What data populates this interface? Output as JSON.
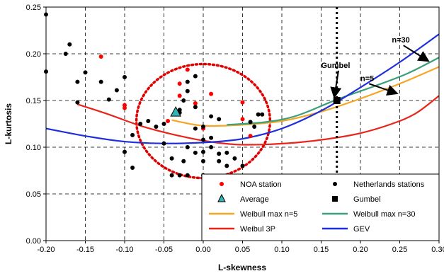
{
  "chart_data": {
    "type": "scatter",
    "title": "",
    "xlabel": "L-skewness",
    "ylabel": "L-kurtosis",
    "xlim": [
      -0.2,
      0.3
    ],
    "ylim": [
      0.0,
      0.25
    ],
    "xticks": [
      -0.2,
      -0.15,
      -0.1,
      -0.05,
      0.0,
      0.05,
      0.1,
      0.15,
      0.2,
      0.25,
      0.3
    ],
    "xtick_labels": [
      "-0.20",
      "-0.15",
      "-0.10",
      "-0.05",
      "0.00",
      "0.05",
      "0.10",
      "0.15",
      "0.20",
      "0.25",
      "0.30"
    ],
    "yticks": [
      0.0,
      0.05,
      0.1,
      0.15,
      0.2,
      0.25
    ],
    "ytick_labels": [
      "0.00",
      "0.05",
      "0.10",
      "0.15",
      "0.20",
      "0.25"
    ],
    "grid": true,
    "legend_position": "bottom-right",
    "vertical_line": {
      "x": 0.17,
      "style": "dotted",
      "color": "#000000"
    },
    "series": [
      {
        "name": "NOA station",
        "kind": "points",
        "color": "#ff0000",
        "points": [
          [
            -0.13,
            0.197
          ],
          [
            -0.1,
            0.145
          ],
          [
            -0.1,
            0.142
          ],
          [
            -0.03,
            0.168
          ],
          [
            -0.03,
            0.155
          ],
          [
            -0.02,
            0.183
          ],
          [
            -0.01,
            0.147
          ],
          [
            0.01,
            0.157
          ],
          [
            0.0,
            0.12
          ],
          [
            0.05,
            0.148
          ],
          [
            0.05,
            0.13
          ],
          [
            0.06,
            0.112
          ],
          [
            -0.045,
            0.128
          ]
        ]
      },
      {
        "name": "Netherlands stations",
        "kind": "points",
        "color": "#000000",
        "points": [
          [
            -0.2,
            0.242
          ],
          [
            -0.2,
            0.181
          ],
          [
            -0.175,
            0.2
          ],
          [
            -0.17,
            0.21
          ],
          [
            -0.16,
            0.148
          ],
          [
            -0.16,
            0.17
          ],
          [
            -0.15,
            0.18
          ],
          [
            -0.13,
            0.17
          ],
          [
            -0.12,
            0.151
          ],
          [
            -0.11,
            0.161
          ],
          [
            -0.1,
            0.175
          ],
          [
            -0.1,
            0.095
          ],
          [
            -0.09,
            0.113
          ],
          [
            -0.08,
            0.125
          ],
          [
            -0.07,
            0.128
          ],
          [
            -0.06,
            0.122
          ],
          [
            -0.05,
            0.125
          ],
          [
            -0.05,
            0.104
          ],
          [
            -0.04,
            0.088
          ],
          [
            -0.04,
            0.07
          ],
          [
            -0.03,
            0.14
          ],
          [
            -0.03,
            0.137
          ],
          [
            -0.025,
            0.15
          ],
          [
            -0.02,
            0.16
          ],
          [
            -0.02,
            0.17
          ],
          [
            -0.02,
            0.1
          ],
          [
            -0.025,
            0.085
          ],
          [
            -0.02,
            0.07
          ],
          [
            -0.01,
            0.176
          ],
          [
            -0.01,
            0.143
          ],
          [
            -0.01,
            0.12
          ],
          [
            -0.01,
            0.094
          ],
          [
            0.0,
            0.122
          ],
          [
            0.0,
            0.108
          ],
          [
            0.0,
            0.095
          ],
          [
            0.0,
            0.085
          ],
          [
            0.01,
            0.133
          ],
          [
            0.01,
            0.11
          ],
          [
            0.01,
            0.1
          ],
          [
            0.02,
            0.13
          ],
          [
            0.02,
            0.093
          ],
          [
            0.02,
            0.085
          ],
          [
            0.03,
            0.094
          ],
          [
            0.03,
            0.08
          ],
          [
            0.04,
            0.088
          ],
          [
            0.05,
            0.08
          ],
          [
            0.06,
            0.127
          ],
          [
            0.065,
            0.122
          ],
          [
            0.07,
            0.135
          ],
          [
            0.075,
            0.135
          ],
          [
            -0.03,
            0.07
          ],
          [
            0.0,
            0.07
          ],
          [
            -0.09,
            0.078
          ]
        ]
      },
      {
        "name": "Average",
        "kind": "marker",
        "color": "#33b5b5",
        "shape": "triangle",
        "points": [
          [
            -0.035,
            0.137
          ]
        ]
      },
      {
        "name": "Gumbel",
        "kind": "marker",
        "color": "#000000",
        "shape": "square",
        "points": [
          [
            0.17,
            0.15
          ]
        ]
      },
      {
        "name": "Weibull max n=5",
        "kind": "line",
        "color": "#f5a623",
        "points": [
          [
            -0.04,
            0.129
          ],
          [
            0.0,
            0.123
          ],
          [
            0.05,
            0.124
          ],
          [
            0.1,
            0.128
          ],
          [
            0.15,
            0.138
          ],
          [
            0.2,
            0.152
          ],
          [
            0.25,
            0.168
          ],
          [
            0.3,
            0.186
          ]
        ]
      },
      {
        "name": "Weibull max n=30",
        "kind": "line",
        "color": "#3a9f7a",
        "points": [
          [
            0.03,
            0.124
          ],
          [
            0.08,
            0.127
          ],
          [
            0.12,
            0.134
          ],
          [
            0.17,
            0.151
          ],
          [
            0.22,
            0.166
          ],
          [
            0.26,
            0.179
          ],
          [
            0.3,
            0.196
          ]
        ]
      },
      {
        "name": "Weibul 3P",
        "kind": "line",
        "color": "#e8251b",
        "points": [
          [
            -0.16,
            0.146
          ],
          [
            -0.12,
            0.135
          ],
          [
            -0.08,
            0.123
          ],
          [
            -0.04,
            0.114
          ],
          [
            0.0,
            0.107
          ],
          [
            0.04,
            0.103
          ],
          [
            0.08,
            0.103
          ],
          [
            0.12,
            0.105
          ],
          [
            0.16,
            0.109
          ],
          [
            0.2,
            0.115
          ],
          [
            0.24,
            0.125
          ],
          [
            0.27,
            0.136
          ],
          [
            0.3,
            0.155
          ]
        ]
      },
      {
        "name": "GEV",
        "kind": "line",
        "color": "#1f2fdc",
        "points": [
          [
            -0.2,
            0.12
          ],
          [
            -0.15,
            0.112
          ],
          [
            -0.1,
            0.106
          ],
          [
            -0.05,
            0.104
          ],
          [
            0.0,
            0.105
          ],
          [
            0.05,
            0.109
          ],
          [
            0.1,
            0.12
          ],
          [
            0.15,
            0.139
          ],
          [
            0.2,
            0.164
          ],
          [
            0.25,
            0.191
          ],
          [
            0.3,
            0.221
          ]
        ]
      }
    ],
    "ellipse": {
      "cx": 0.0,
      "cy": 0.128,
      "rx": 0.085,
      "ry": 0.061,
      "color": "#e00000",
      "style": "dotted"
    },
    "annotations": [
      {
        "text": "Gumbel",
        "x": 0.15,
        "y": 0.185,
        "arrow_to": [
          0.167,
          0.155
        ]
      },
      {
        "text": "n=5",
        "x": 0.2,
        "y": 0.171,
        "arrow_to": [
          0.245,
          0.158
        ]
      },
      {
        "text": "n=30",
        "x": 0.24,
        "y": 0.212,
        "arrow_to": [
          0.285,
          0.193
        ]
      }
    ]
  }
}
